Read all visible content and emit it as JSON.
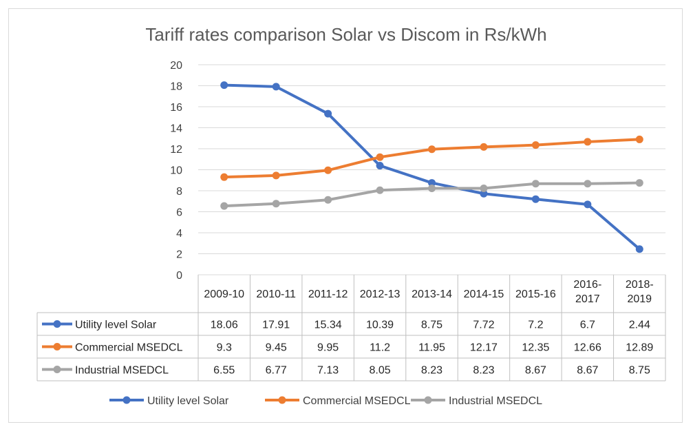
{
  "chart_data": {
    "type": "line",
    "title": "Tariff rates comparison Solar vs Discom in Rs/kWh",
    "categories": [
      "2009-10",
      "2010-11",
      "2011-12",
      "2012-13",
      "2013-14",
      "2014-15",
      "2015-16",
      "2016-2017",
      "2018-2019"
    ],
    "category_lines": [
      [
        "2009-10"
      ],
      [
        "2010-11"
      ],
      [
        "2011-12"
      ],
      [
        "2012-13"
      ],
      [
        "2013-14"
      ],
      [
        "2014-15"
      ],
      [
        "2015-16"
      ],
      [
        "2016-",
        "2017"
      ],
      [
        "2018-",
        "2019"
      ]
    ],
    "ylim": [
      0,
      20
    ],
    "yticks": [
      0,
      2,
      4,
      6,
      8,
      10,
      12,
      14,
      16,
      18,
      20
    ],
    "grid": true,
    "legend_position": "bottom",
    "series": [
      {
        "name": "Utility level Solar",
        "color": "#4472c4",
        "values": [
          18.06,
          17.91,
          15.34,
          10.39,
          8.75,
          7.72,
          7.2,
          6.7,
          2.44
        ],
        "labels": [
          "18.06",
          "17.91",
          "15.34",
          "10.39",
          "8.75",
          "7.72",
          "7.2",
          "6.7",
          "2.44"
        ]
      },
      {
        "name": "Commercial MSEDCL",
        "color": "#ed7d31",
        "values": [
          9.3,
          9.45,
          9.95,
          11.2,
          11.95,
          12.17,
          12.35,
          12.66,
          12.89
        ],
        "labels": [
          "9.3",
          "9.45",
          "9.95",
          "11.2",
          "11.95",
          "12.17",
          "12.35",
          "12.66",
          "12.89"
        ]
      },
      {
        "name": "Industrial MSEDCL",
        "color": "#a5a5a5",
        "values": [
          6.55,
          6.77,
          7.13,
          8.05,
          8.23,
          8.23,
          8.67,
          8.67,
          8.75
        ],
        "labels": [
          "6.55",
          "6.77",
          "7.13",
          "8.05",
          "8.23",
          "8.23",
          "8.67",
          "8.67",
          "8.75"
        ]
      }
    ]
  }
}
